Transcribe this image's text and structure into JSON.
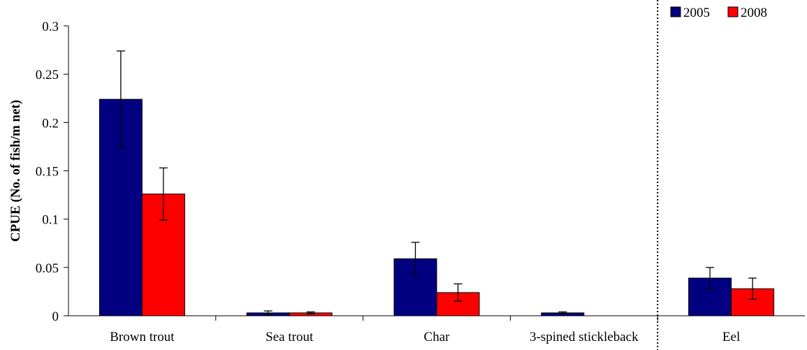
{
  "chart_data": {
    "type": "bar",
    "title": "",
    "xlabel": "",
    "ylabel": "CPUE (No. of fish/m net)",
    "ylim": [
      0,
      0.3
    ],
    "yticks": [
      0,
      0.05,
      0.1,
      0.15,
      0.2,
      0.25,
      0.3
    ],
    "ytick_labels": [
      "0",
      "0.05",
      "0.1",
      "0.15",
      "0.2",
      "0.25",
      "0.3"
    ],
    "categories": [
      "Brown trout",
      "Sea trout",
      "Char",
      "3-spined stickleback",
      "Eel"
    ],
    "series": [
      {
        "name": "2005",
        "color": "#000080",
        "values": [
          0.224,
          0.003,
          0.059,
          0.003,
          0.039
        ],
        "error": [
          0.05,
          0.002,
          0.017,
          0.001,
          0.011
        ]
      },
      {
        "name": "2008",
        "color": "#ff0000",
        "values": [
          0.126,
          0.003,
          0.024,
          null,
          0.028
        ],
        "error": [
          0.027,
          0.001,
          0.009,
          null,
          0.011
        ]
      }
    ],
    "separator": {
      "after_category": "3-spined stickleback",
      "style": "dotted"
    },
    "legend": {
      "position": "top-right",
      "labels": [
        "2005",
        "2008"
      ]
    },
    "grid": false
  }
}
